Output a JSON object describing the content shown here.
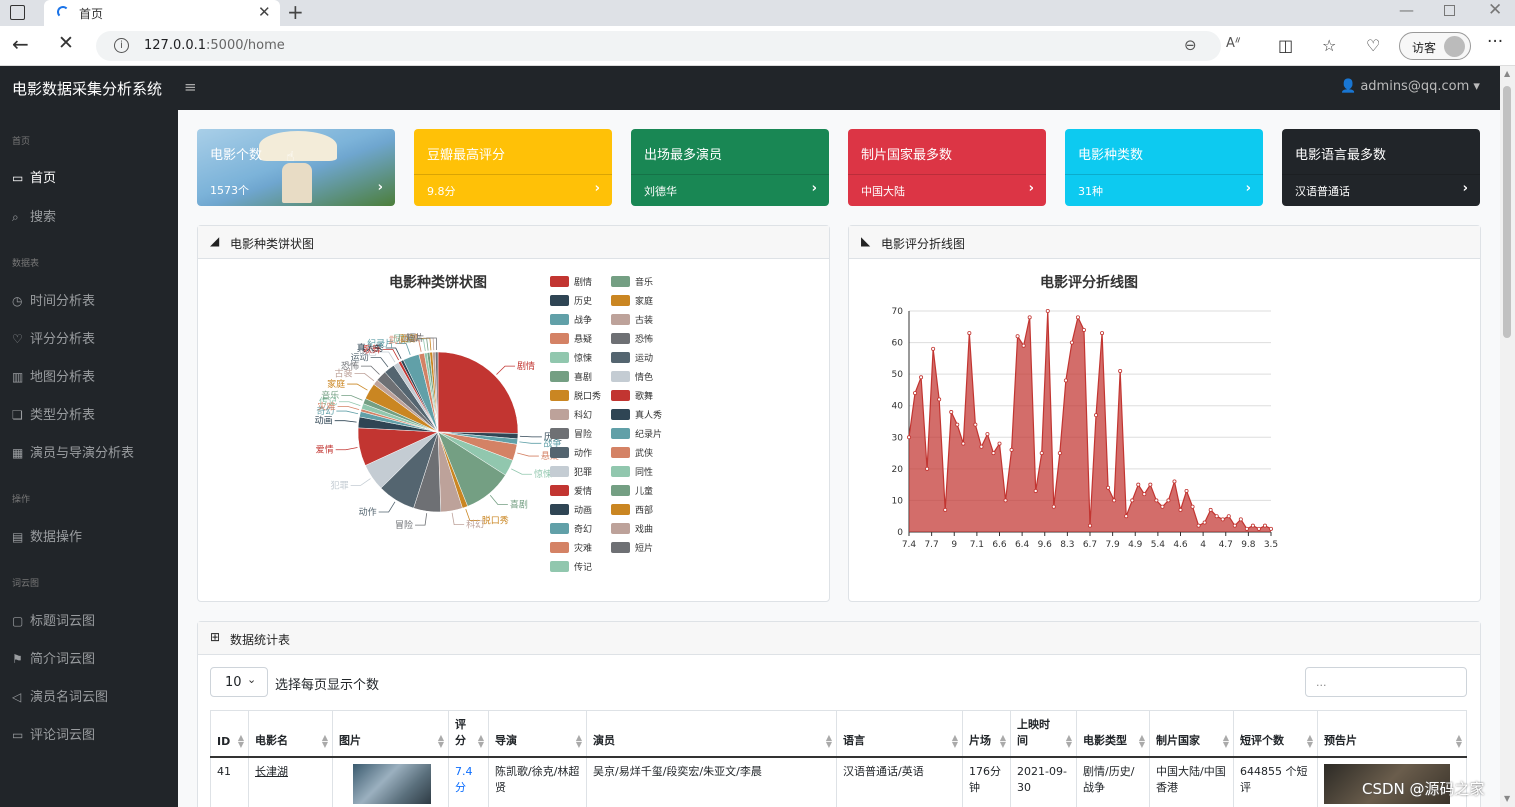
{
  "browser": {
    "tab_title": "首页",
    "url_host": "127.0.0.1",
    "url_rest": ":5000/home",
    "guest_label": "访客"
  },
  "app": {
    "brand": "电影数据采集分析系统",
    "user": "admins@qq.com"
  },
  "sidebar": {
    "sections": [
      {
        "heading": "首页",
        "items": [
          {
            "label": "首页",
            "icon": "monitor-icon"
          },
          {
            "label": "搜索",
            "icon": "search-icon"
          }
        ]
      },
      {
        "heading": "数据表",
        "items": [
          {
            "label": "时间分析表",
            "icon": "clock-icon"
          },
          {
            "label": "评分分析表",
            "icon": "heart-icon"
          },
          {
            "label": "地图分析表",
            "icon": "map-icon"
          },
          {
            "label": "类型分析表",
            "icon": "layers-icon"
          },
          {
            "label": "演员与导演分析表",
            "icon": "building-icon"
          }
        ]
      },
      {
        "heading": "操作",
        "items": [
          {
            "label": "数据操作",
            "icon": "table-icon"
          }
        ]
      },
      {
        "heading": "词云图",
        "items": [
          {
            "label": "标题词云图",
            "icon": "chat-icon"
          },
          {
            "label": "简介词云图",
            "icon": "flag-icon"
          },
          {
            "label": "演员名词云图",
            "icon": "send-icon"
          },
          {
            "label": "评论词云图",
            "icon": "card-icon"
          }
        ]
      }
    ]
  },
  "cards": [
    {
      "title": "电影个数",
      "value": "1573个",
      "color": "image"
    },
    {
      "title": "豆瓣最高评分",
      "value": "9.8分",
      "color": "#ffc107"
    },
    {
      "title": "出场最多演员",
      "value": "刘德华",
      "color": "#198754"
    },
    {
      "title": "制片国家最多数",
      "value": "中国大陆",
      "color": "#dc3545"
    },
    {
      "title": "电影种类数",
      "value": "31种",
      "color": "#0dcaf0"
    },
    {
      "title": "电影语言最多数",
      "value": "汉语普通话",
      "color": "#212529"
    }
  ],
  "pie_panel": {
    "title": "电影种类饼状图"
  },
  "line_panel": {
    "title": "电影评分折线图"
  },
  "chart_data": [
    {
      "type": "pie",
      "title": "电影种类饼状图",
      "slices": [
        {
          "label": "剧情",
          "value": 23,
          "color": "#c23531"
        },
        {
          "label": "历史",
          "value": 1,
          "color": "#2f4554"
        },
        {
          "label": "战争",
          "value": 1,
          "color": "#61a0a8"
        },
        {
          "label": "悬疑",
          "value": 3,
          "color": "#d48265"
        },
        {
          "label": "惊悚",
          "value": 3,
          "color": "#91c7ae"
        },
        {
          "label": "喜剧",
          "value": 9,
          "color": "#749f83"
        },
        {
          "label": "脱口秀",
          "value": 1,
          "color": "#ca8622"
        },
        {
          "label": "科幻",
          "value": 4,
          "color": "#bda29a"
        },
        {
          "label": "冒险",
          "value": 5,
          "color": "#6e7074"
        },
        {
          "label": "动作",
          "value": 7,
          "color": "#546570"
        },
        {
          "label": "犯罪",
          "value": 5,
          "color": "#c4ccd3"
        },
        {
          "label": "爱情",
          "value": 7,
          "color": "#c23531"
        },
        {
          "label": "动画",
          "value": 2,
          "color": "#2f4554"
        },
        {
          "label": "奇幻",
          "value": 1,
          "color": "#61a0a8"
        },
        {
          "label": "灾难",
          "value": 0.5,
          "color": "#d48265"
        },
        {
          "label": "传记",
          "value": 1,
          "color": "#91c7ae"
        },
        {
          "label": "音乐",
          "value": 1,
          "color": "#749f83"
        },
        {
          "label": "家庭",
          "value": 3,
          "color": "#ca8622"
        },
        {
          "label": "古装",
          "value": 1,
          "color": "#bda29a"
        },
        {
          "label": "恐怖",
          "value": 2,
          "color": "#6e7074"
        },
        {
          "label": "运动",
          "value": 2,
          "color": "#546570"
        },
        {
          "label": "情色",
          "value": 1,
          "color": "#c4ccd3"
        },
        {
          "label": "歌舞",
          "value": 0.5,
          "color": "#c23531"
        },
        {
          "label": "真人秀",
          "value": 0.5,
          "color": "#2f4554"
        },
        {
          "label": "纪录片",
          "value": 3,
          "color": "#61a0a8"
        },
        {
          "label": "武侠",
          "value": 1,
          "color": "#d48265"
        },
        {
          "label": "同性",
          "value": 0.5,
          "color": "#91c7ae"
        },
        {
          "label": "儿童",
          "value": 0.5,
          "color": "#749f83"
        },
        {
          "label": "西部",
          "value": 0.5,
          "color": "#ca8622"
        },
        {
          "label": "戏曲",
          "value": 0.5,
          "color": "#bda29a"
        },
        {
          "label": "短片",
          "value": 0.5,
          "color": "#6e7074"
        }
      ],
      "legend_placement": "right"
    },
    {
      "type": "area",
      "title": "电影评分折线图",
      "x_tick_labels": [
        "7.4",
        "7.7",
        "9",
        "7.1",
        "6.6",
        "6.4",
        "9.6",
        "8.3",
        "6.7",
        "7.9",
        "4.9",
        "5.4",
        "4.6",
        "4",
        "4.7",
        "9.8",
        "3.5"
      ],
      "values": [
        30,
        44,
        49,
        20,
        58,
        42,
        7,
        38,
        34,
        28,
        63,
        34,
        27,
        31,
        25,
        28,
        10,
        26,
        62,
        59,
        68,
        13,
        25,
        70,
        8,
        25,
        48,
        60,
        68,
        64,
        2,
        37,
        63,
        14,
        10,
        51,
        5,
        10,
        15,
        12,
        15,
        10,
        8,
        10,
        16,
        7,
        13,
        8,
        2,
        3,
        7,
        5,
        4,
        5,
        2,
        4,
        1,
        2,
        1,
        2,
        1
      ],
      "ylim": [
        0,
        70
      ],
      "y_ticks": [
        0,
        10,
        20,
        30,
        40,
        50,
        60,
        70
      ],
      "color": "#c23531",
      "grid": true
    }
  ],
  "table_panel": {
    "title": "数据统计表",
    "page_size": "10",
    "page_size_label": "选择每页显示个数",
    "search_placeholder": "...",
    "columns": [
      "ID",
      "电影名",
      "图片",
      "评分",
      "导演",
      "演员",
      "语言",
      "片场",
      "上映时间",
      "电影类型",
      "制片国家",
      "短评个数",
      "预告片"
    ],
    "rows": [
      {
        "id": "41",
        "name": "长津湖",
        "score": "7.4分",
        "director": "陈凯歌/徐克/林超贤",
        "actors": "吴京/易烊千玺/段奕宏/朱亚文/李晨",
        "language": "汉语普通话/英语",
        "duration": "176分钟",
        "release": "2021-09-30",
        "genre": "剧情/历史/战争",
        "country": "中国大陆/中国香港",
        "comments": "644855 个短评"
      }
    ]
  },
  "watermark": "CSDN @源码之家"
}
